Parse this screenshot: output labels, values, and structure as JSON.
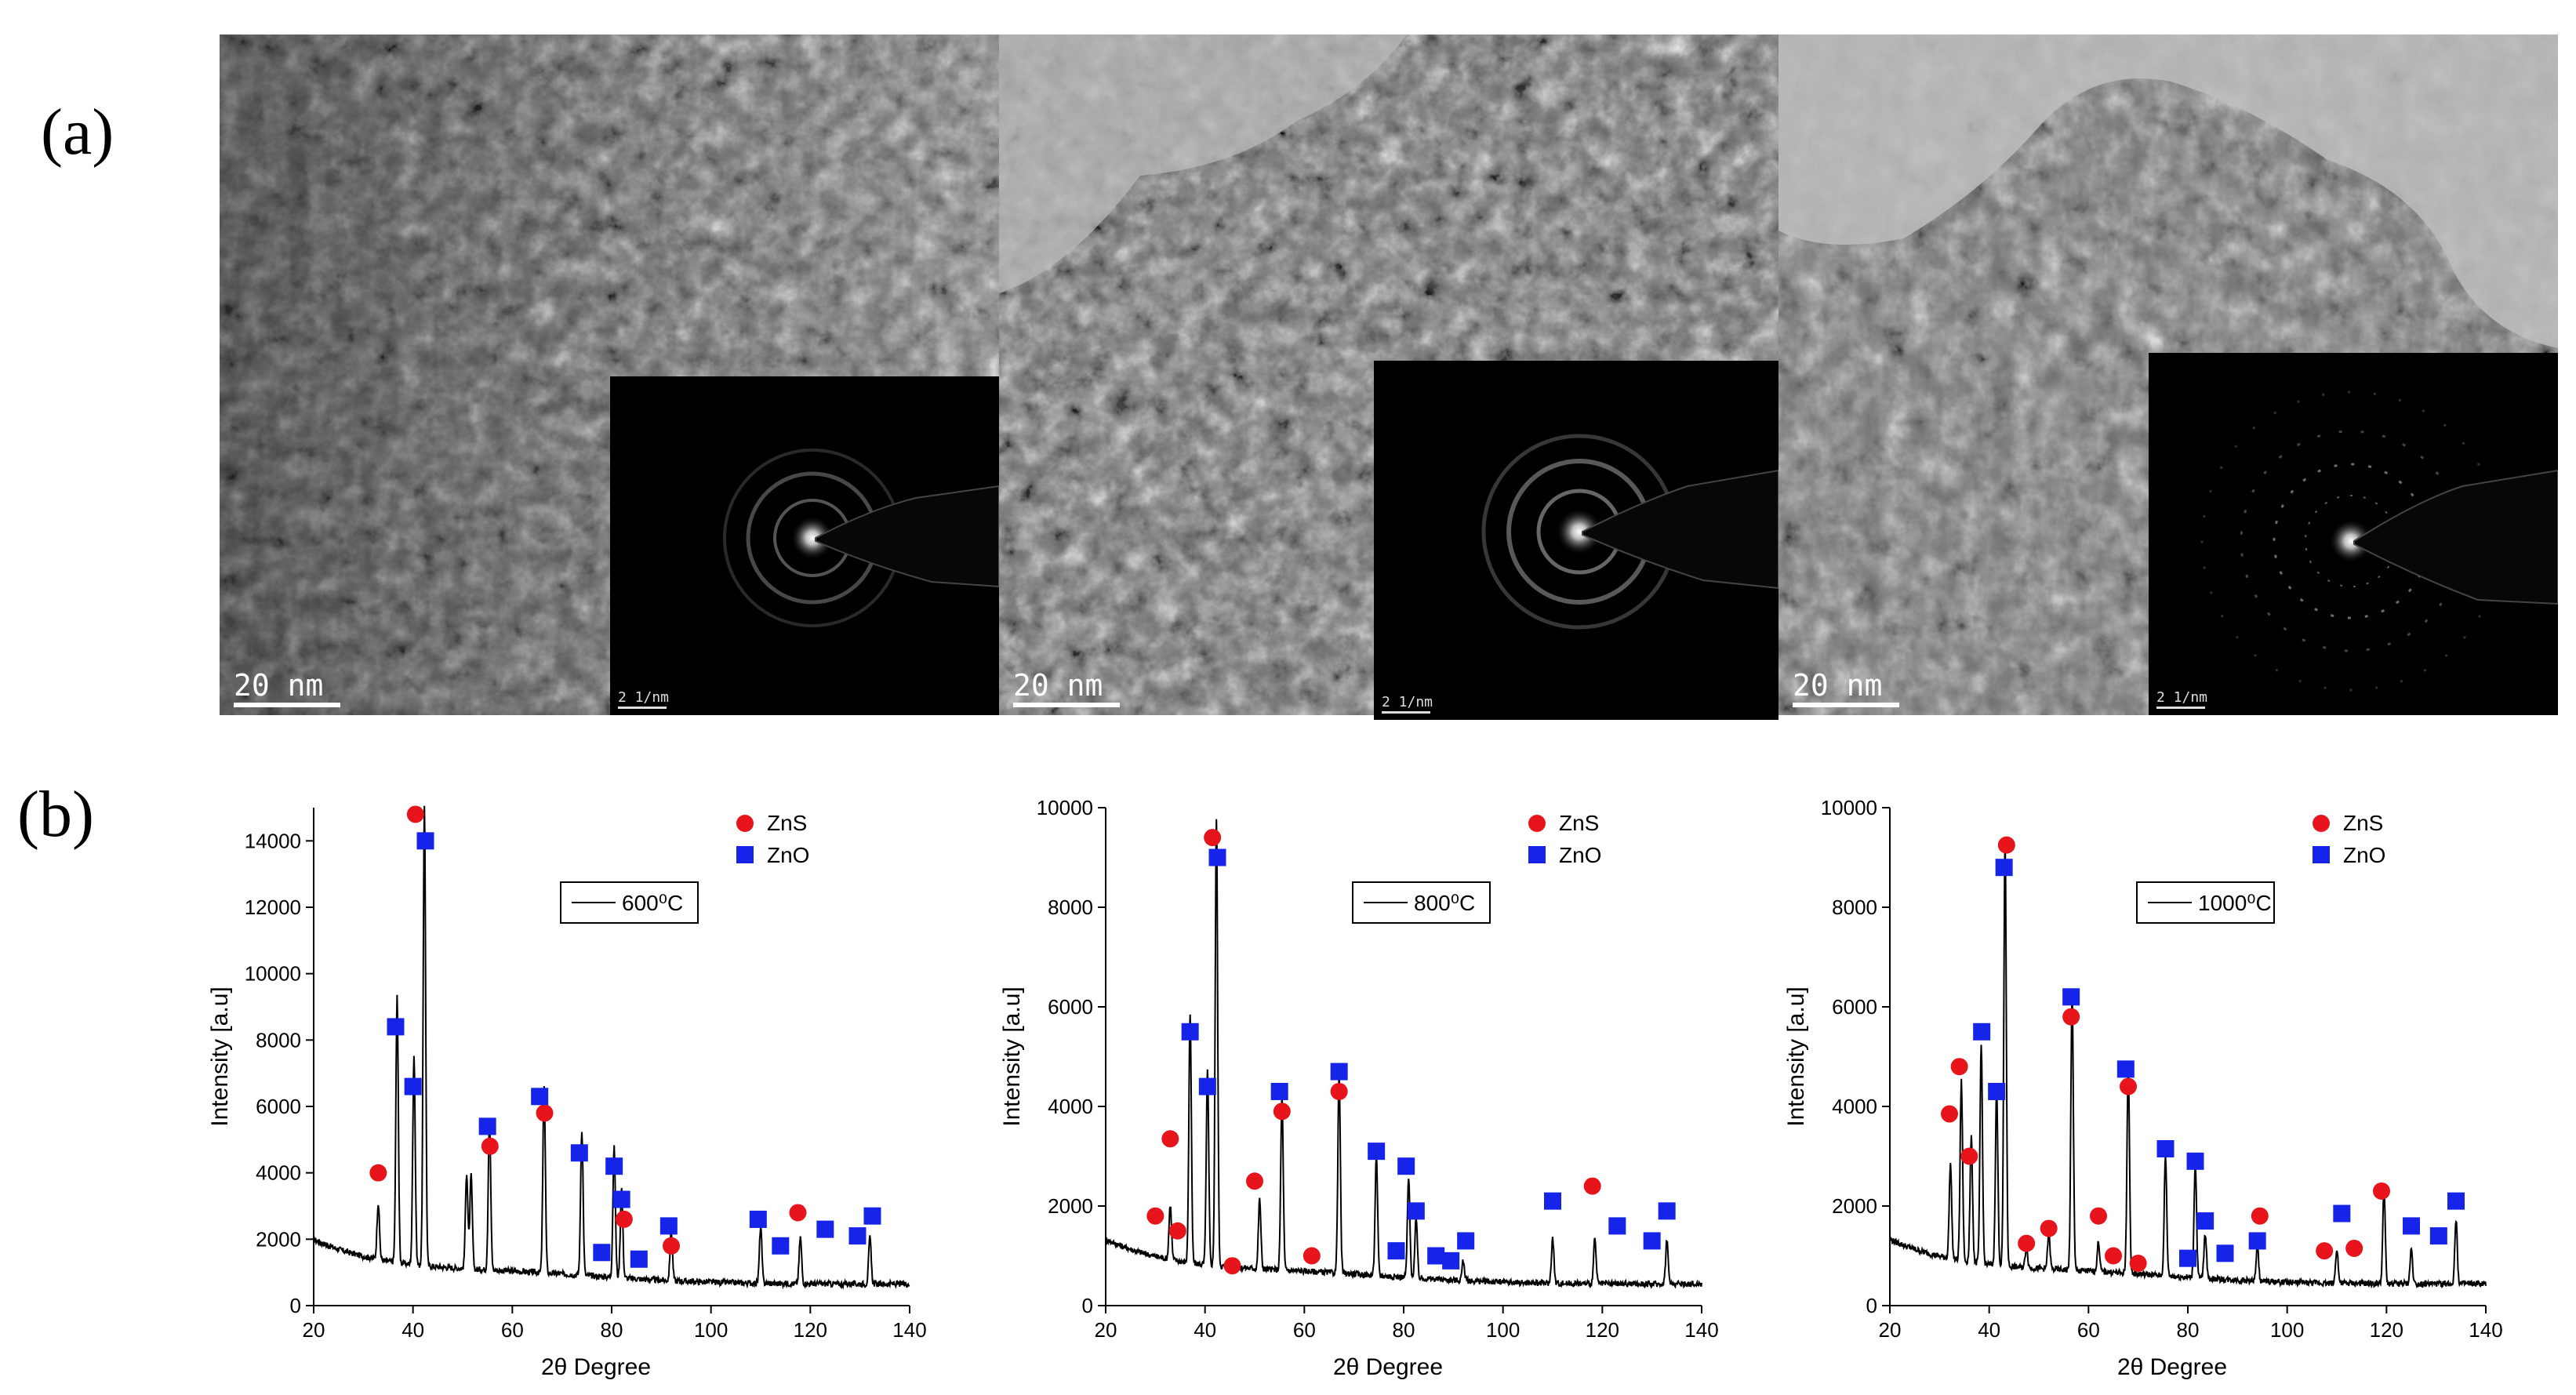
{
  "figure": {
    "label_a": "(a)",
    "label_b": "(b)"
  },
  "tem_panels": [
    {
      "scale_label": "20  nm",
      "saed_scale_label": "2 1/nm"
    },
    {
      "scale_label": "20  nm",
      "saed_scale_label": "2 1/nm"
    },
    {
      "scale_label": "20  nm",
      "saed_scale_label": "2 1/nm"
    }
  ],
  "colors": {
    "zns_marker": "#e8141b",
    "zno_marker": "#1524e8",
    "line": "#000000"
  },
  "chart_data": [
    {
      "type": "line",
      "xlabel": "2θ Degree",
      "ylabel": "Intensity [a.u]",
      "xlim": [
        20,
        140
      ],
      "ylim": [
        0,
        15000
      ],
      "xticks": [
        20,
        40,
        60,
        80,
        100,
        120,
        140
      ],
      "yticks": [
        0,
        2000,
        4000,
        6000,
        8000,
        10000,
        12000,
        14000
      ],
      "legend": {
        "line_label": "600⁰C",
        "zns_label": "ZnS",
        "zno_label": "ZnO",
        "placement": "top-right"
      },
      "series": [
        {
          "peaks": [
            [
              33,
              1700
            ],
            [
              36.8,
              8000
            ],
            [
              40.2,
              6300
            ],
            [
              42.3,
              13900
            ],
            [
              50.8,
              2900
            ],
            [
              51.7,
              2800
            ],
            [
              55.4,
              4500
            ],
            [
              66.4,
              5700
            ],
            [
              74,
              4400
            ],
            [
              80.5,
              3900
            ],
            [
              82,
              2700
            ],
            [
              92,
              1500
            ],
            [
              110,
              1700
            ],
            [
              118,
              1400
            ],
            [
              132,
              1400
            ]
          ]
        }
      ],
      "markers": {
        "zns": [
          [
            33,
            4000
          ],
          [
            40.5,
            14800
          ],
          [
            55.5,
            4800
          ],
          [
            66.5,
            5800
          ],
          [
            82.5,
            2600
          ],
          [
            92,
            1800
          ],
          [
            117.5,
            2800
          ]
        ],
        "zno": [
          [
            36.5,
            8400
          ],
          [
            40,
            6600
          ],
          [
            42.5,
            14000
          ],
          [
            55,
            5400
          ],
          [
            65.5,
            6300
          ],
          [
            73.5,
            4600
          ],
          [
            78,
            1600
          ],
          [
            80.5,
            4200
          ],
          [
            82,
            3200
          ],
          [
            85.5,
            1400
          ],
          [
            91.5,
            2400
          ],
          [
            109.5,
            2600
          ],
          [
            114,
            1800
          ],
          [
            123,
            2300
          ],
          [
            129.5,
            2100
          ],
          [
            132.5,
            2700
          ]
        ]
      }
    },
    {
      "type": "line",
      "xlabel": "2θ Degree",
      "ylabel": "Intensity [a.u]",
      "xlim": [
        20,
        140
      ],
      "ylim": [
        0,
        10000
      ],
      "xticks": [
        20,
        40,
        60,
        80,
        100,
        120,
        140
      ],
      "yticks": [
        0,
        2000,
        4000,
        6000,
        8000,
        10000
      ],
      "legend": {
        "line_label": "800⁰C",
        "zns_label": "ZnS",
        "zno_label": "ZnO",
        "placement": "top-right"
      },
      "series": [
        {
          "peaks": [
            [
              33,
              1100
            ],
            [
              37,
              5000
            ],
            [
              40.5,
              3900
            ],
            [
              42.3,
              9000
            ],
            [
              51,
              1400
            ],
            [
              55.5,
              3500
            ],
            [
              67,
              4000
            ],
            [
              74.5,
              2400
            ],
            [
              81,
              2000
            ],
            [
              82.5,
              1200
            ],
            [
              92,
              400
            ],
            [
              110,
              900
            ],
            [
              118.5,
              900
            ],
            [
              133,
              900
            ]
          ]
        }
      ],
      "markers": {
        "zns": [
          [
            30,
            1800
          ],
          [
            33,
            3350
          ],
          [
            34.5,
            1500
          ],
          [
            41.5,
            9400
          ],
          [
            45.5,
            800
          ],
          [
            50,
            2500
          ],
          [
            55.5,
            3900
          ],
          [
            61.5,
            1000
          ],
          [
            67,
            4300
          ],
          [
            118,
            2400
          ]
        ],
        "zno": [
          [
            37,
            5500
          ],
          [
            40.5,
            4400
          ],
          [
            42.5,
            9000
          ],
          [
            55,
            4300
          ],
          [
            67,
            4700
          ],
          [
            74.5,
            3100
          ],
          [
            78.5,
            1100
          ],
          [
            80.5,
            2800
          ],
          [
            82.5,
            1900
          ],
          [
            86.5,
            1000
          ],
          [
            89.5,
            900
          ],
          [
            92.5,
            1300
          ],
          [
            110,
            2100
          ],
          [
            123,
            1600
          ],
          [
            130,
            1300
          ],
          [
            133,
            1900
          ]
        ]
      }
    },
    {
      "type": "line",
      "xlabel": "2θ Degree",
      "ylabel": "Intensity [a.u]",
      "xlim": [
        20,
        140
      ],
      "ylim": [
        0,
        10000
      ],
      "xticks": [
        20,
        40,
        60,
        80,
        100,
        120,
        140
      ],
      "yticks": [
        0,
        2000,
        4000,
        6000,
        8000,
        10000
      ],
      "legend": {
        "line_label": "1000⁰C",
        "zns_label": "ZnS",
        "zno_label": "ZnO",
        "placement": "top-right"
      },
      "series": [
        {
          "peaks": [
            [
              32.2,
              1900
            ],
            [
              34.4,
              3600
            ],
            [
              36.4,
              2500
            ],
            [
              38.4,
              4400
            ],
            [
              41.5,
              3500
            ],
            [
              43.2,
              8600
            ],
            [
              47.5,
              400
            ],
            [
              52,
              700
            ],
            [
              56.7,
              5600
            ],
            [
              62,
              600
            ],
            [
              68,
              4200
            ],
            [
              75.5,
              2400
            ],
            [
              81.5,
              2300
            ],
            [
              83.5,
              900
            ],
            [
              94,
              700
            ],
            [
              110,
              700
            ],
            [
              119.5,
              1900
            ],
            [
              125,
              700
            ],
            [
              134,
              1300
            ]
          ]
        }
      ],
      "markers": {
        "zns": [
          [
            32,
            3850
          ],
          [
            34,
            4800
          ],
          [
            36,
            3000
          ],
          [
            43.5,
            9250
          ],
          [
            47.5,
            1250
          ],
          [
            52,
            1550
          ],
          [
            56.5,
            5800
          ],
          [
            62,
            1800
          ],
          [
            65,
            1000
          ],
          [
            68,
            4400
          ],
          [
            70,
            850
          ],
          [
            94.5,
            1800
          ],
          [
            107.5,
            1100
          ],
          [
            113.5,
            1150
          ],
          [
            119,
            2300
          ]
        ],
        "zno": [
          [
            38.5,
            5500
          ],
          [
            41.5,
            4300
          ],
          [
            43,
            8800
          ],
          [
            56.5,
            6200
          ],
          [
            67.5,
            4750
          ],
          [
            75.5,
            3150
          ],
          [
            80,
            950
          ],
          [
            81.5,
            2900
          ],
          [
            83.5,
            1700
          ],
          [
            87.5,
            1050
          ],
          [
            94,
            1300
          ],
          [
            111,
            1850
          ],
          [
            125,
            1600
          ],
          [
            130.5,
            1400
          ],
          [
            134,
            2100
          ]
        ]
      }
    }
  ]
}
